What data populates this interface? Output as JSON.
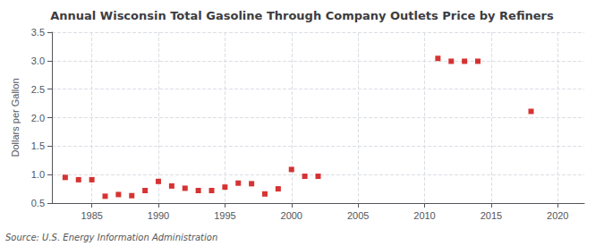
{
  "chart_data": {
    "type": "scatter",
    "title": "Annual Wisconsin Total Gasoline Through Company Outlets Price by Refiners",
    "ylabel": "Dollars per Gallon",
    "annotation": "Source: U.S. Energy Information Administration",
    "x": [
      1983,
      1984,
      1985,
      1986,
      1987,
      1988,
      1989,
      1990,
      1991,
      1992,
      1993,
      1994,
      1995,
      1996,
      1997,
      1998,
      1999,
      2000,
      2001,
      2002,
      2011,
      2012,
      2013,
      2014,
      2018
    ],
    "values": [
      0.95,
      0.91,
      0.91,
      0.62,
      0.65,
      0.63,
      0.72,
      0.88,
      0.8,
      0.76,
      0.72,
      0.72,
      0.78,
      0.85,
      0.84,
      0.66,
      0.75,
      1.09,
      0.97,
      0.97,
      3.04,
      2.99,
      2.99,
      2.99,
      2.11
    ],
    "color": "#cc0000",
    "marker": "square",
    "xlim": [
      1982,
      2022
    ],
    "xticks": [
      1985,
      1990,
      1995,
      2000,
      2005,
      2010,
      2015,
      2020
    ],
    "ylim": [
      0.5,
      3.5
    ],
    "yticks": [
      0.5,
      {
        "value": 1.0,
        "label": "1.0"
      },
      1.5,
      {
        "value": 2.0,
        "label": "2.0"
      },
      2.5,
      {
        "value": 3.0,
        "label": "3.0"
      },
      3.5
    ],
    "grid": true
  }
}
